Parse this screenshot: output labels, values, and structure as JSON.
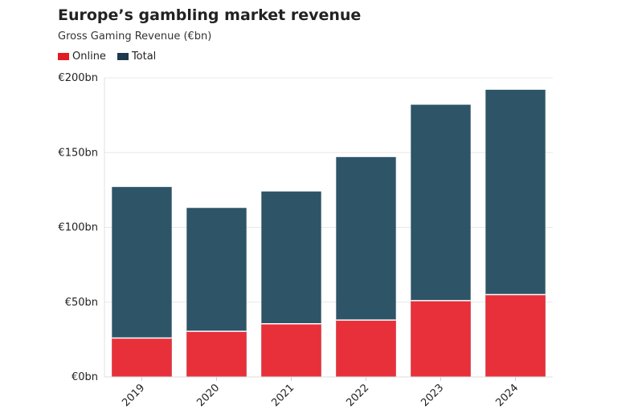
{
  "chart_data": {
    "type": "bar",
    "title": "Europe’s gambling market revenue",
    "subtitle": "Gross Gaming Revenue (€bn)",
    "categories": [
      "2019",
      "2020",
      "2021",
      "2022",
      "2023",
      "2024"
    ],
    "series": [
      {
        "name": "Online",
        "values": [
          26,
          30.5,
          35.5,
          38,
          51,
          55
        ],
        "color": "#e8303a"
      },
      {
        "name": "Total",
        "values": [
          127,
          113,
          124,
          147,
          182,
          192
        ],
        "color": "#2e5468"
      }
    ],
    "y_ticks": [
      {
        "value": 0,
        "label": "€0bn"
      },
      {
        "value": 50,
        "label": "€50bn"
      },
      {
        "value": 100,
        "label": "€100bn"
      },
      {
        "value": 150,
        "label": "€150bn"
      },
      {
        "value": 200,
        "label": "€200bn"
      }
    ],
    "ylim": [
      0,
      200
    ],
    "grid": true,
    "legend_position": "top-left"
  }
}
